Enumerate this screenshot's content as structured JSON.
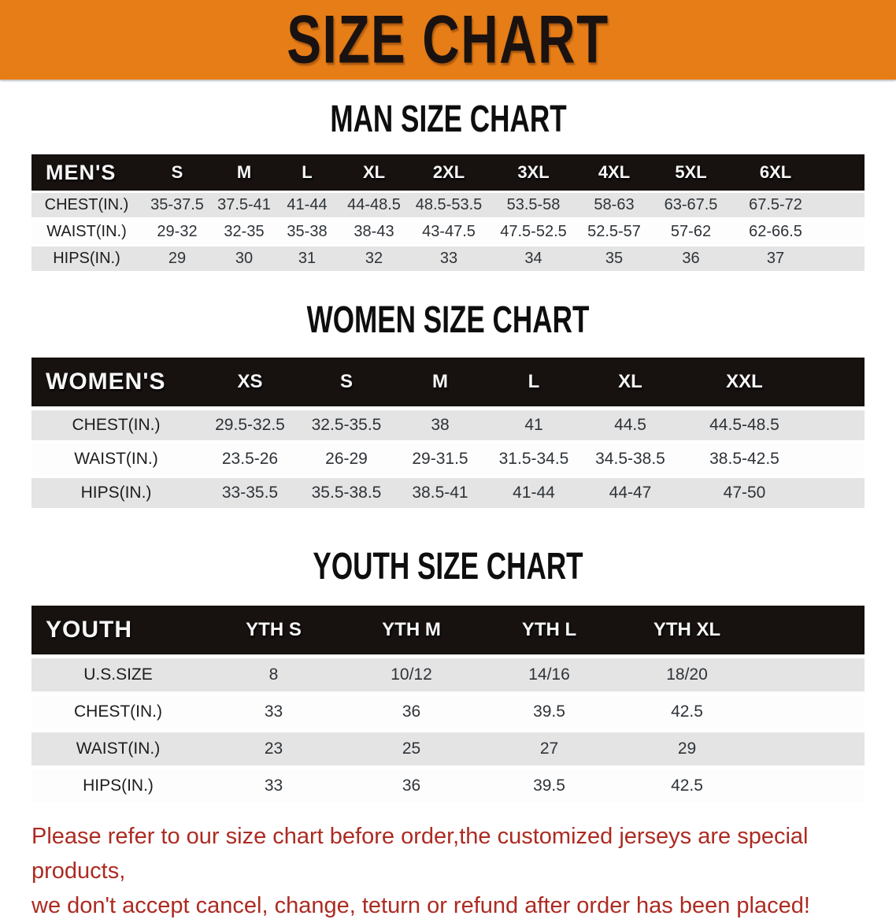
{
  "banner": {
    "title": "SIZE CHART"
  },
  "sections": {
    "men": {
      "heading": "MAN SIZE CHART",
      "table": {
        "label": "MEN'S",
        "columns": [
          "S",
          "M",
          "L",
          "XL",
          "2XL",
          "3XL",
          "4XL",
          "5XL",
          "6XL"
        ],
        "rows": [
          {
            "label": "CHEST(IN.)",
            "values": [
              "35-37.5",
              "37.5-41",
              "41-44",
              "44-48.5",
              "48.5-53.5",
              "53.5-58",
              "58-63",
              "63-67.5",
              "67.5-72"
            ]
          },
          {
            "label": "WAIST(IN.)",
            "values": [
              "29-32",
              "32-35",
              "35-38",
              "38-43",
              "43-47.5",
              "47.5-52.5",
              "52.5-57",
              "57-62",
              "62-66.5"
            ]
          },
          {
            "label": "HIPS(IN.)",
            "values": [
              "29",
              "30",
              "31",
              "32",
              "33",
              "34",
              "35",
              "36",
              "37"
            ]
          }
        ]
      }
    },
    "women": {
      "heading": "WOMEN SIZE CHART",
      "table": {
        "label": "WOMEN'S",
        "columns": [
          "XS",
          "S",
          "M",
          "L",
          "XL",
          "XXL"
        ],
        "rows": [
          {
            "label": "CHEST(IN.)",
            "values": [
              "29.5-32.5",
              "32.5-35.5",
              "38",
              "41",
              "44.5",
              "44.5-48.5"
            ]
          },
          {
            "label": "WAIST(IN.)",
            "values": [
              "23.5-26",
              "26-29",
              "29-31.5",
              "31.5-34.5",
              "34.5-38.5",
              "38.5-42.5"
            ]
          },
          {
            "label": "HIPS(IN.)",
            "values": [
              "33-35.5",
              "35.5-38.5",
              "38.5-41",
              "41-44",
              "44-47",
              "47-50"
            ]
          }
        ]
      }
    },
    "youth": {
      "heading": "YOUTH SIZE CHART",
      "table": {
        "label": "YOUTH",
        "columns": [
          "YTH S",
          "YTH M",
          "YTH L",
          "YTH XL"
        ],
        "rows": [
          {
            "label": "U.S.SIZE",
            "values": [
              "8",
              "10/12",
              "14/16",
              "18/20"
            ]
          },
          {
            "label": "CHEST(IN.)",
            "values": [
              "33",
              "36",
              "39.5",
              "42.5"
            ]
          },
          {
            "label": "WAIST(IN.)",
            "values": [
              "23",
              "25",
              "27",
              "29"
            ]
          },
          {
            "label": "HIPS(IN.)",
            "values": [
              "33",
              "36",
              "39.5",
              "42.5"
            ]
          }
        ]
      }
    }
  },
  "footer": {
    "line1": "Please refer to our size chart before order,the customized jerseys are special products,",
    "line2": "we don't accept cancel, change, teturn or refund after order has been placed!"
  },
  "colors": {
    "banner_bg": "#E67D17",
    "header_bar": "#171110",
    "row_alt": "#E4E4E4",
    "footer_text": "#AC2B22"
  }
}
